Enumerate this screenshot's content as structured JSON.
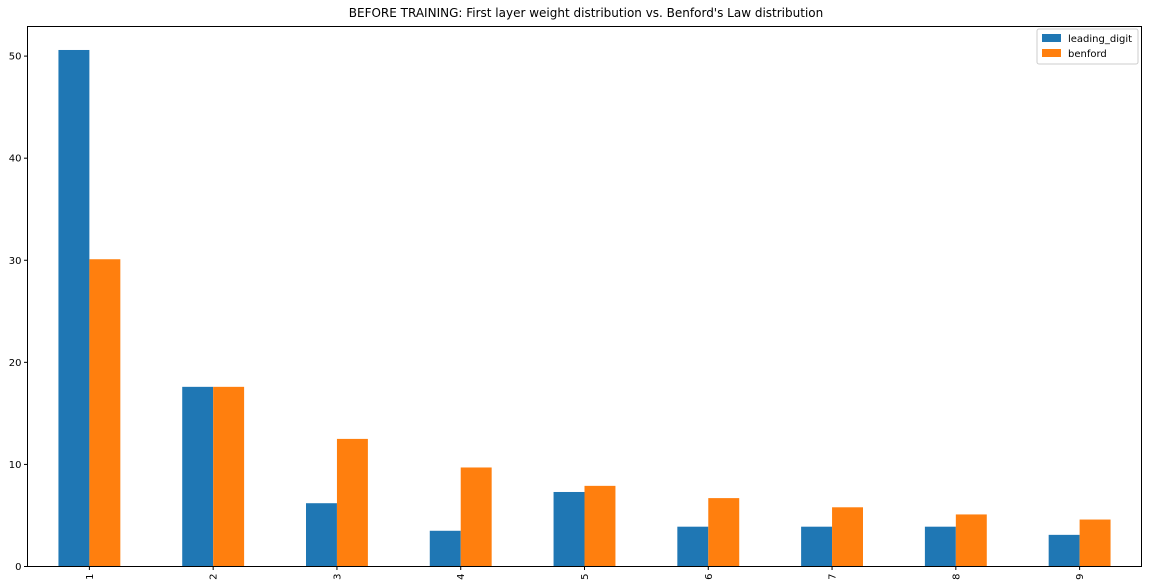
{
  "chart_data": {
    "type": "bar",
    "title": "BEFORE TRAINING: First layer weight distribution vs. Benford's Law distribution",
    "xlabel": "",
    "ylabel": "",
    "categories": [
      "1",
      "2",
      "3",
      "4",
      "5",
      "6",
      "7",
      "8",
      "9"
    ],
    "series": [
      {
        "name": "leading_digit",
        "color": "#1f77b4",
        "values": [
          50.6,
          17.6,
          6.2,
          3.5,
          7.3,
          3.9,
          3.9,
          3.9,
          3.1
        ]
      },
      {
        "name": "benford",
        "color": "#ff7f0e",
        "values": [
          30.1,
          17.6,
          12.5,
          9.7,
          7.9,
          6.7,
          5.8,
          5.1,
          4.6
        ]
      }
    ],
    "ylim": [
      0,
      52.9
    ],
    "yticks": [
      0,
      10,
      20,
      30,
      40,
      50
    ],
    "grid": false,
    "legend": "top-right",
    "x_tick_rotation": "vertical"
  }
}
